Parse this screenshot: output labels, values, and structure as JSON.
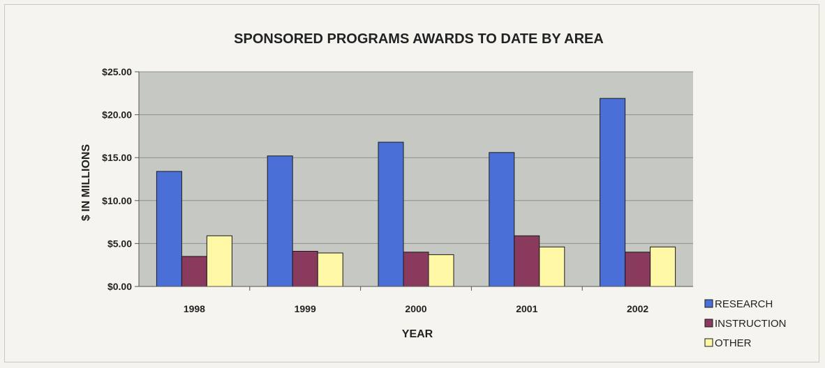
{
  "chart_data": {
    "type": "bar",
    "title": "SPONSORED PROGRAMS AWARDS TO DATE BY AREA",
    "xlabel": "YEAR",
    "ylabel": "$ IN MILLIONS",
    "categories": [
      "1998",
      "1999",
      "2000",
      "2001",
      "2002"
    ],
    "ylim": [
      0,
      25
    ],
    "yticks": [
      0,
      5,
      10,
      15,
      20,
      25
    ],
    "ytick_labels": [
      "$0.00",
      "$5.00",
      "$10.00",
      "$15.00",
      "$20.00",
      "$25.00"
    ],
    "grid": true,
    "legend_position": "bottom-right",
    "series": [
      {
        "name": "RESEARCH",
        "color": "#4a6fd6",
        "values": [
          13.4,
          15.2,
          16.8,
          15.6,
          21.9
        ]
      },
      {
        "name": "INSTRUCTION",
        "color": "#8a3a5c",
        "values": [
          3.5,
          4.1,
          4.0,
          5.9,
          4.0
        ]
      },
      {
        "name": "OTHER",
        "color": "#fdf7a6",
        "values": [
          5.9,
          3.9,
          3.7,
          4.6,
          4.6
        ]
      }
    ],
    "plot_background": "#c5c8c3"
  }
}
